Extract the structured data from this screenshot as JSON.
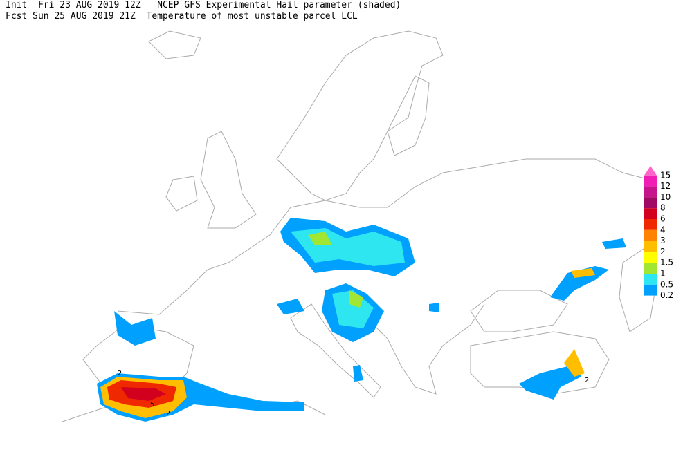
{
  "header": {
    "init_line": "Init  Fri 23 AUG 2019 12Z",
    "title": "NCEP GFS Experimental Hail parameter (shaded)",
    "fcst_line": "Fcst Sun 25 AUG 2019 21Z",
    "subtitle": "Temperature of most unstable parcel LCL"
  },
  "legend": {
    "items": [
      {
        "label": "15",
        "color": "#ff64c8"
      },
      {
        "label": "12",
        "color": "#f01eb4"
      },
      {
        "label": "10",
        "color": "#c8148c"
      },
      {
        "label": "8",
        "color": "#a00a64"
      },
      {
        "label": "6",
        "color": "#d2001e"
      },
      {
        "label": "4",
        "color": "#f02800"
      },
      {
        "label": "3",
        "color": "#ff8200"
      },
      {
        "label": "2",
        "color": "#ffbe00"
      },
      {
        "label": "1.5",
        "color": "#ffff00"
      },
      {
        "label": "1",
        "color": "#a0e632"
      },
      {
        "label": "0.5",
        "color": "#2ee6f0"
      },
      {
        "label": "0.2",
        "color": "#00a0ff"
      }
    ]
  },
  "map": {
    "contour_labels": [
      "2",
      "5",
      "2",
      "2"
    ]
  }
}
